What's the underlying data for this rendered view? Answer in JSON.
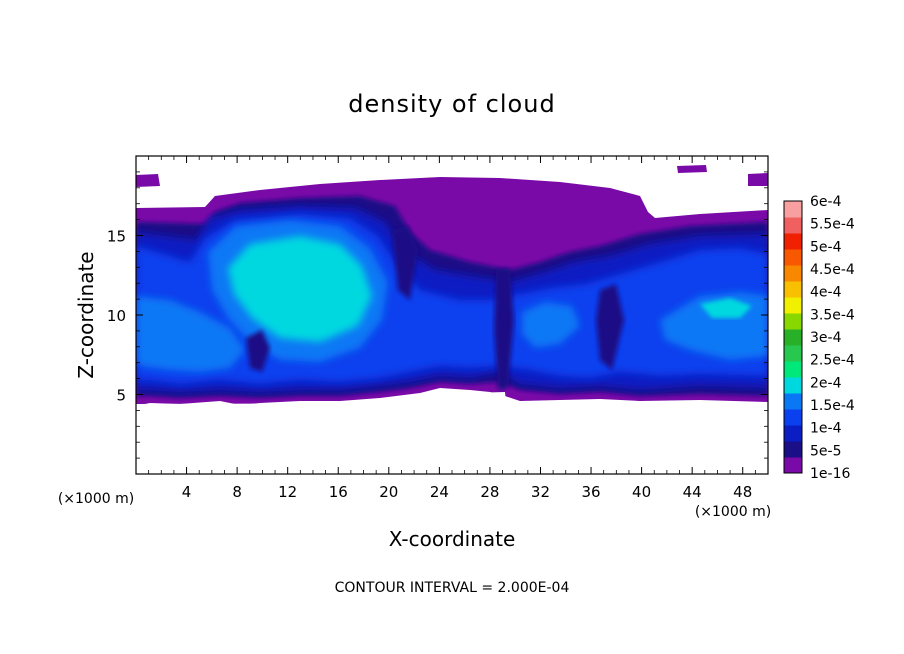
{
  "chart_data": {
    "type": "heatmap",
    "title": "density of cloud",
    "xlabel": "X-coordinate",
    "ylabel": "Z-coordinate",
    "x_unit": "(×1000 m)",
    "y_unit": "(×1000 m)",
    "xlim": [
      0,
      50
    ],
    "ylim": [
      0,
      20
    ],
    "x_ticks": [
      "4",
      "8",
      "12",
      "16",
      "20",
      "24",
      "28",
      "32",
      "36",
      "40",
      "44",
      "48"
    ],
    "y_ticks": [
      "5",
      "10",
      "15"
    ],
    "footer": "CONTOUR INTERVAL = 2.000E-04",
    "colorbar": {
      "labels": [
        "1e-16",
        "5e-5",
        "1e-4",
        "1.5e-4",
        "2e-4",
        "2.5e-4",
        "3e-4",
        "3.5e-4",
        "4e-4",
        "4.5e-4",
        "5e-4",
        "5.5e-4",
        "6e-4"
      ],
      "colors": [
        "#7a0aa8",
        "#1a0f86",
        "#0b1ec3",
        "#0a40ee",
        "#0a78f5",
        "#00d8e0",
        "#00e87a",
        "#28c850",
        "#28b028",
        "#88d800",
        "#f0f000",
        "#f8c000",
        "#f88800",
        "#f85800",
        "#f02000",
        "#f06060",
        "#f8a0a0"
      ]
    },
    "grid": false,
    "legend": "right (colorbar)",
    "field": {
      "cloud_base_z": 5,
      "cloud_top_z": 18.5,
      "max_value": 0.00019,
      "max_region": "x 10–16, z 10–14"
    }
  }
}
